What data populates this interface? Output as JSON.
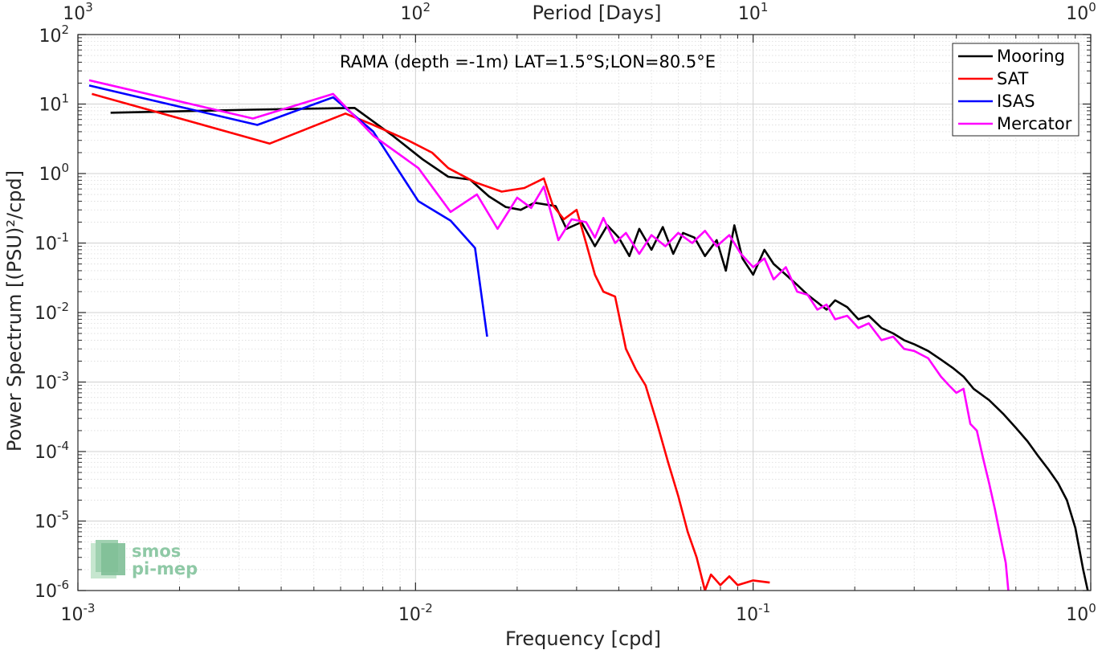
{
  "chart_data": {
    "type": "line",
    "title": "RAMA (depth =-1m) LAT=1.5°S;LON=80.5°E",
    "xlabel": "Frequency [cpd]",
    "ylabel": "Power Spectrum [(PSU)²/cpd]",
    "top_xlabel": "Period [Days]",
    "x_scale": "log",
    "y_scale": "log",
    "xlim": [
      0.001,
      1
    ],
    "ylim": [
      1e-06,
      100
    ],
    "grid": true,
    "legend_position": "top-right",
    "x_ticks": [
      {
        "value": 0.001,
        "base": "10",
        "exp": "-3"
      },
      {
        "value": 0.01,
        "base": "10",
        "exp": "-2"
      },
      {
        "value": 0.1,
        "base": "10",
        "exp": "-1"
      },
      {
        "value": 1,
        "base": "10",
        "exp": "0"
      }
    ],
    "top_ticks": [
      {
        "value": 0.001,
        "base": "10",
        "exp": "3"
      },
      {
        "value": 0.01,
        "base": "10",
        "exp": "2"
      },
      {
        "value": 0.1,
        "base": "10",
        "exp": "1"
      },
      {
        "value": 1,
        "base": "10",
        "exp": "0"
      }
    ],
    "y_ticks": [
      {
        "value": 100,
        "base": "10",
        "exp": "2"
      },
      {
        "value": 10,
        "base": "10",
        "exp": "1"
      },
      {
        "value": 1,
        "base": "10",
        "exp": "0"
      },
      {
        "value": 0.1,
        "base": "10",
        "exp": "-1"
      },
      {
        "value": 0.01,
        "base": "10",
        "exp": "-2"
      },
      {
        "value": 0.001,
        "base": "10",
        "exp": "-3"
      },
      {
        "value": 0.0001,
        "base": "10",
        "exp": "-4"
      },
      {
        "value": 1e-05,
        "base": "10",
        "exp": "-5"
      },
      {
        "value": 1e-06,
        "base": "10",
        "exp": "-6"
      }
    ],
    "series": [
      {
        "name": "Mooring",
        "color": "#000000",
        "points": [
          [
            0.00125,
            7.5
          ],
          [
            0.0033,
            8.3
          ],
          [
            0.0066,
            8.8
          ],
          [
            0.0085,
            3.6
          ],
          [
            0.0105,
            1.6
          ],
          [
            0.0125,
            0.9
          ],
          [
            0.0145,
            0.82
          ],
          [
            0.0165,
            0.47
          ],
          [
            0.0185,
            0.33
          ],
          [
            0.0205,
            0.3
          ],
          [
            0.0225,
            0.38
          ],
          [
            0.026,
            0.34
          ],
          [
            0.028,
            0.16
          ],
          [
            0.031,
            0.2
          ],
          [
            0.034,
            0.09
          ],
          [
            0.037,
            0.18
          ],
          [
            0.04,
            0.12
          ],
          [
            0.043,
            0.065
          ],
          [
            0.046,
            0.16
          ],
          [
            0.05,
            0.08
          ],
          [
            0.054,
            0.17
          ],
          [
            0.058,
            0.07
          ],
          [
            0.062,
            0.14
          ],
          [
            0.067,
            0.12
          ],
          [
            0.072,
            0.065
          ],
          [
            0.078,
            0.11
          ],
          [
            0.083,
            0.04
          ],
          [
            0.088,
            0.18
          ],
          [
            0.093,
            0.06
          ],
          [
            0.1,
            0.035
          ],
          [
            0.108,
            0.08
          ],
          [
            0.115,
            0.05
          ],
          [
            0.125,
            0.035
          ],
          [
            0.135,
            0.025
          ],
          [
            0.145,
            0.018
          ],
          [
            0.155,
            0.014
          ],
          [
            0.165,
            0.011
          ],
          [
            0.175,
            0.015
          ],
          [
            0.19,
            0.012
          ],
          [
            0.205,
            0.008
          ],
          [
            0.22,
            0.009
          ],
          [
            0.24,
            0.006
          ],
          [
            0.26,
            0.005
          ],
          [
            0.28,
            0.004
          ],
          [
            0.3,
            0.0035
          ],
          [
            0.33,
            0.0028
          ],
          [
            0.36,
            0.0021
          ],
          [
            0.39,
            0.0016
          ],
          [
            0.42,
            0.0012
          ],
          [
            0.45,
            0.0008
          ],
          [
            0.5,
            0.00055
          ],
          [
            0.55,
            0.00035
          ],
          [
            0.6,
            0.00022
          ],
          [
            0.65,
            0.00014
          ],
          [
            0.7,
            8.5e-05
          ],
          [
            0.75,
            5.5e-05
          ],
          [
            0.8,
            3.5e-05
          ],
          [
            0.85,
            2e-05
          ],
          [
            0.9,
            8e-06
          ],
          [
            0.95,
            2e-06
          ],
          [
            0.98,
            1e-06
          ]
        ]
      },
      {
        "name": "SAT",
        "color": "#ff0000",
        "points": [
          [
            0.0011,
            14
          ],
          [
            0.0037,
            2.7
          ],
          [
            0.0062,
            7.3
          ],
          [
            0.0075,
            5
          ],
          [
            0.0095,
            3
          ],
          [
            0.0112,
            2
          ],
          [
            0.0125,
            1.2
          ],
          [
            0.015,
            0.75
          ],
          [
            0.018,
            0.55
          ],
          [
            0.021,
            0.62
          ],
          [
            0.024,
            0.85
          ],
          [
            0.0255,
            0.35
          ],
          [
            0.0275,
            0.22
          ],
          [
            0.03,
            0.3
          ],
          [
            0.032,
            0.1
          ],
          [
            0.034,
            0.035
          ],
          [
            0.036,
            0.02
          ],
          [
            0.039,
            0.017
          ],
          [
            0.042,
            0.003
          ],
          [
            0.045,
            0.0015
          ],
          [
            0.048,
            0.0009
          ],
          [
            0.052,
            0.00025
          ],
          [
            0.056,
            7e-05
          ],
          [
            0.06,
            2.3e-05
          ],
          [
            0.064,
            7e-06
          ],
          [
            0.068,
            3e-06
          ],
          [
            0.072,
            1e-06
          ],
          [
            0.075,
            1.7e-06
          ],
          [
            0.08,
            1.2e-06
          ],
          [
            0.085,
            1.6e-06
          ],
          [
            0.09,
            1.2e-06
          ],
          [
            0.1,
            1.4e-06
          ],
          [
            0.112,
            1.3e-06
          ]
        ]
      },
      {
        "name": "ISAS",
        "color": "#0000ff",
        "points": [
          [
            0.00108,
            18.5
          ],
          [
            0.0034,
            5
          ],
          [
            0.0057,
            12.5
          ],
          [
            0.0075,
            4
          ],
          [
            0.0102,
            0.4
          ],
          [
            0.0127,
            0.21
          ],
          [
            0.015,
            0.085
          ],
          [
            0.0163,
            0.0045
          ]
        ]
      },
      {
        "name": "Mercator",
        "color": "#ff00ff",
        "points": [
          [
            0.00108,
            22
          ],
          [
            0.0033,
            6.2
          ],
          [
            0.0057,
            14
          ],
          [
            0.0075,
            3.5
          ],
          [
            0.0102,
            1.2
          ],
          [
            0.0127,
            0.28
          ],
          [
            0.0152,
            0.5
          ],
          [
            0.0175,
            0.16
          ],
          [
            0.02,
            0.45
          ],
          [
            0.022,
            0.32
          ],
          [
            0.024,
            0.65
          ],
          [
            0.0265,
            0.11
          ],
          [
            0.029,
            0.22
          ],
          [
            0.032,
            0.2
          ],
          [
            0.034,
            0.12
          ],
          [
            0.036,
            0.23
          ],
          [
            0.039,
            0.1
          ],
          [
            0.042,
            0.14
          ],
          [
            0.046,
            0.07
          ],
          [
            0.05,
            0.13
          ],
          [
            0.055,
            0.09
          ],
          [
            0.06,
            0.14
          ],
          [
            0.066,
            0.1
          ],
          [
            0.072,
            0.15
          ],
          [
            0.078,
            0.09
          ],
          [
            0.085,
            0.13
          ],
          [
            0.092,
            0.07
          ],
          [
            0.1,
            0.045
          ],
          [
            0.108,
            0.06
          ],
          [
            0.115,
            0.03
          ],
          [
            0.125,
            0.045
          ],
          [
            0.135,
            0.02
          ],
          [
            0.145,
            0.018
          ],
          [
            0.155,
            0.011
          ],
          [
            0.165,
            0.013
          ],
          [
            0.175,
            0.008
          ],
          [
            0.19,
            0.009
          ],
          [
            0.205,
            0.006
          ],
          [
            0.22,
            0.007
          ],
          [
            0.24,
            0.004
          ],
          [
            0.26,
            0.0045
          ],
          [
            0.28,
            0.003
          ],
          [
            0.3,
            0.0028
          ],
          [
            0.33,
            0.0022
          ],
          [
            0.36,
            0.0012
          ],
          [
            0.38,
            0.0009
          ],
          [
            0.4,
            0.0007
          ],
          [
            0.42,
            0.0008
          ],
          [
            0.44,
            0.00025
          ],
          [
            0.46,
            0.0002
          ],
          [
            0.48,
            8e-05
          ],
          [
            0.5,
            3.5e-05
          ],
          [
            0.52,
            1.5e-05
          ],
          [
            0.54,
            6e-06
          ],
          [
            0.56,
            2.5e-06
          ],
          [
            0.57,
            1e-06
          ]
        ]
      }
    ]
  },
  "logo": {
    "line1": "smos",
    "line2": "pi-mep"
  }
}
